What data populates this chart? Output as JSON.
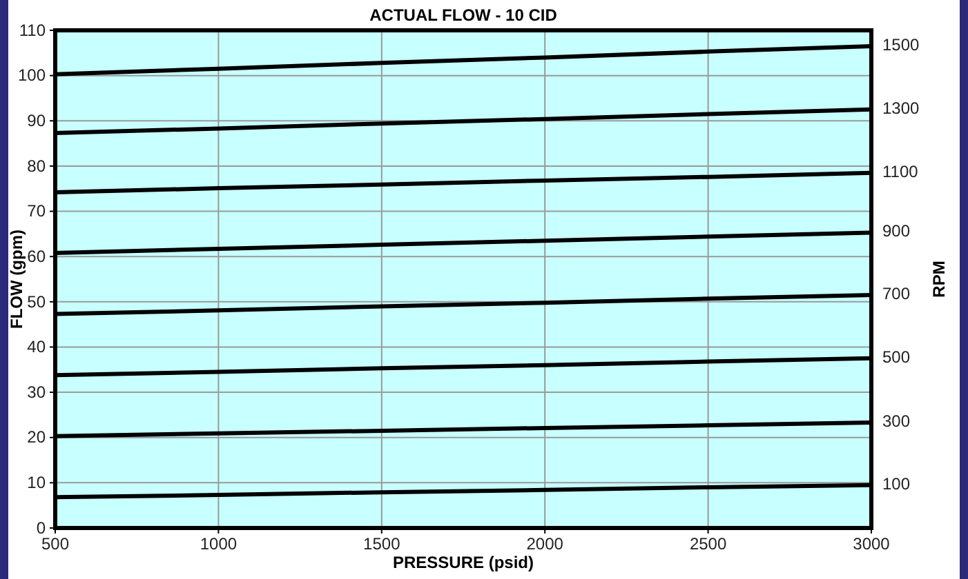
{
  "chart_data": {
    "type": "line",
    "title": "ACTUAL FLOW - 10 CID",
    "xlabel": "PRESSURE (psid)",
    "ylabel": "FLOW (gpm)",
    "y2label": "RPM",
    "x": [
      500,
      1000,
      1500,
      2000,
      2500,
      3000
    ],
    "xlim": [
      500,
      3000
    ],
    "xticks": [
      500,
      1000,
      1500,
      2000,
      2500,
      3000
    ],
    "ylim": [
      0,
      110
    ],
    "yticks": [
      0,
      10,
      20,
      30,
      40,
      50,
      60,
      70,
      80,
      90,
      100,
      110
    ],
    "grid": true,
    "line_style": "solid",
    "series": [
      {
        "name": "1500",
        "color": "#000000",
        "values": [
          100.3,
          101.5,
          102.8,
          104.0,
          105.3,
          106.5
        ]
      },
      {
        "name": "1300",
        "color": "#000000",
        "values": [
          87.3,
          88.3,
          89.4,
          90.4,
          91.5,
          92.5
        ]
      },
      {
        "name": "1100",
        "color": "#000000",
        "values": [
          74.2,
          75.1,
          75.9,
          76.8,
          77.6,
          78.5
        ]
      },
      {
        "name": "900",
        "color": "#000000",
        "values": [
          60.8,
          61.7,
          62.6,
          63.5,
          64.4,
          65.3
        ]
      },
      {
        "name": "700",
        "color": "#000000",
        "values": [
          47.3,
          48.1,
          49.0,
          49.8,
          50.7,
          51.5
        ]
      },
      {
        "name": "500",
        "color": "#000000",
        "values": [
          33.8,
          34.5,
          35.3,
          36.0,
          36.8,
          37.5
        ]
      },
      {
        "name": "300",
        "color": "#000000",
        "values": [
          20.3,
          20.9,
          21.5,
          22.1,
          22.7,
          23.3
        ]
      },
      {
        "name": "100",
        "color": "#000000",
        "values": [
          6.8,
          7.3,
          7.9,
          8.4,
          9.0,
          9.5
        ]
      }
    ]
  }
}
